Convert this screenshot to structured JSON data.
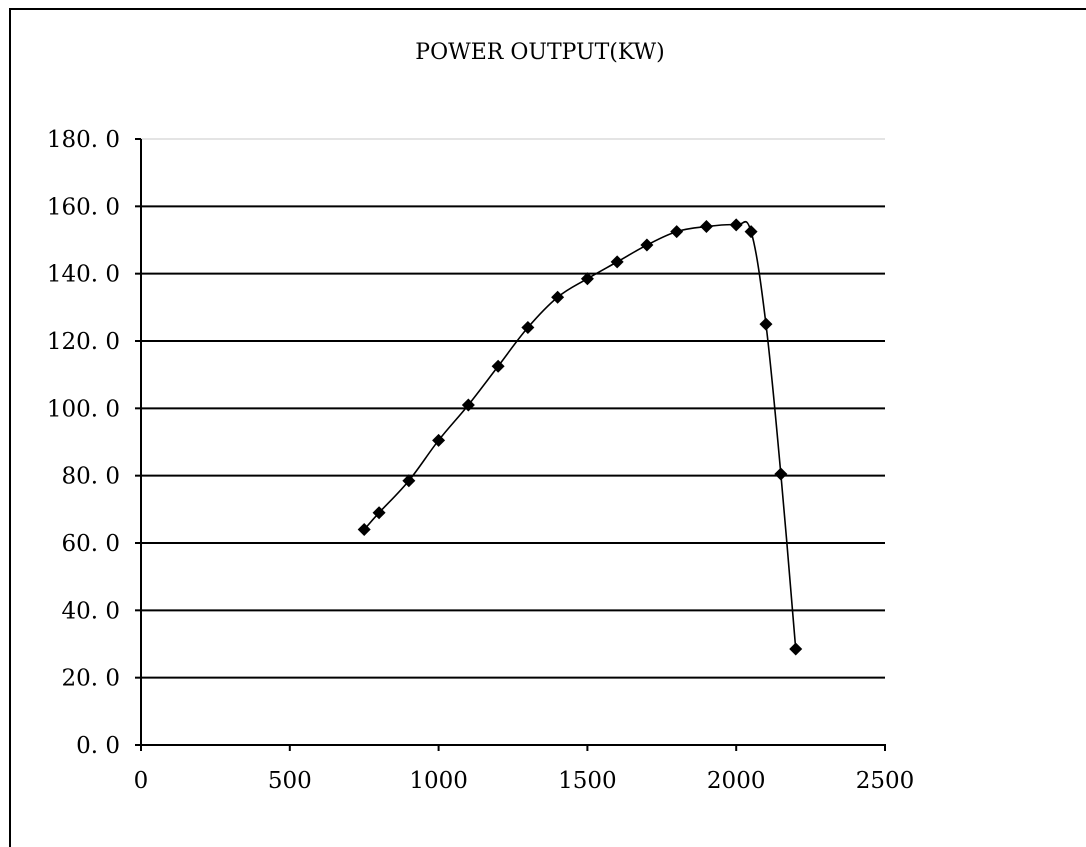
{
  "chart_data": {
    "type": "line",
    "title": "POWER OUTPUT(KW)",
    "xlabel": "",
    "ylabel": "",
    "xlim": [
      0,
      2500
    ],
    "ylim": [
      0,
      180
    ],
    "xticks": [
      0,
      500,
      1000,
      1500,
      2000,
      2500
    ],
    "xtick_labels": [
      "0",
      "500",
      "1000",
      "1500",
      "2000",
      "2500"
    ],
    "yticks": [
      0,
      20,
      40,
      60,
      80,
      100,
      120,
      140,
      160,
      180
    ],
    "ytick_labels": [
      "0. 0",
      "20. 0",
      "40. 0",
      "60. 0",
      "80. 0",
      "100. 0",
      "120. 0",
      "140. 0",
      "160. 0",
      "180. 0"
    ],
    "grid": "horizontal",
    "legend": "none",
    "marker": "diamond",
    "series": [
      {
        "x": [
          750,
          800,
          900,
          1000,
          1100,
          1200,
          1300,
          1400,
          1500,
          1600,
          1700,
          1800,
          1900,
          2000,
          2050,
          2100,
          2150,
          2200
        ],
        "y": [
          64.0,
          69.0,
          78.5,
          90.5,
          101.0,
          112.5,
          124.0,
          133.0,
          138.5,
          143.5,
          148.5,
          152.5,
          154.0,
          154.5,
          152.5,
          125.0,
          80.5,
          28.5
        ],
        "color": "#000000"
      }
    ]
  }
}
